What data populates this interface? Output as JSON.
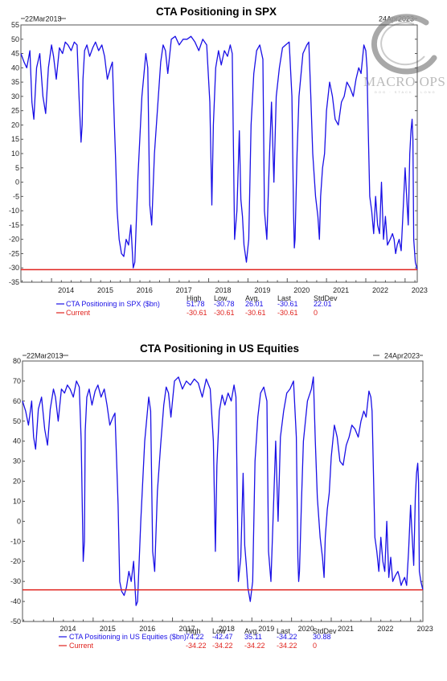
{
  "logo": {
    "text": "MACRO OPS",
    "subtext": "DOG · STACK · LONG"
  },
  "chart_data": [
    {
      "type": "line",
      "title": "CTA Positioning in SPX",
      "start_label": "22Mar2013",
      "end_label": "24Apr2023",
      "xlim": [
        2013.22,
        2023.31
      ],
      "ylim": [
        -35,
        55
      ],
      "y_ticks": [
        -35,
        -30,
        -25,
        -20,
        -15,
        -10,
        -5,
        0,
        5,
        10,
        15,
        20,
        25,
        30,
        35,
        40,
        45,
        50,
        55
      ],
      "x_ticks": [
        {
          "label": "2014",
          "value": 2014.0
        },
        {
          "label": "2015",
          "value": 2015.0
        },
        {
          "label": "2016",
          "value": 2016.0
        },
        {
          "label": "2017",
          "value": 2017.0
        },
        {
          "label": "2018",
          "value": 2018.0
        },
        {
          "label": "2019",
          "value": 2019.0
        },
        {
          "label": "2020",
          "value": 2020.0
        },
        {
          "label": "2021",
          "value": 2021.0
        },
        {
          "label": "2022",
          "value": 2022.0
        },
        {
          "label": "2023",
          "value": 2023.0
        }
      ],
      "stats_headers": [
        "High",
        "Low",
        "Avg.",
        "Last",
        "StdDev"
      ],
      "series": [
        {
          "name": "CTA Positioning in SPX ($bn)",
          "color": "#1a10e6",
          "stats": [
            "51.78",
            "-30.78",
            "26.01",
            "-30.61",
            "22.01"
          ],
          "x": [
            2013.22,
            2013.3,
            2013.37,
            2013.45,
            2013.5,
            2013.55,
            2013.62,
            2013.7,
            2013.78,
            2013.85,
            2013.92,
            2014.0,
            2014.05,
            2014.12,
            2014.2,
            2014.28,
            2014.35,
            2014.42,
            2014.5,
            2014.58,
            2014.65,
            2014.7,
            2014.75,
            2014.78,
            2014.8,
            2014.84,
            2014.9,
            2014.97,
            2015.05,
            2015.12,
            2015.2,
            2015.28,
            2015.35,
            2015.42,
            2015.5,
            2015.55,
            2015.6,
            2015.63,
            2015.67,
            2015.72,
            2015.78,
            2015.84,
            2015.9,
            2015.96,
            2016.02,
            2016.08,
            2016.12,
            2016.2,
            2016.3,
            2016.4,
            2016.45,
            2016.5,
            2016.55,
            2016.62,
            2016.7,
            2016.78,
            2016.84,
            2016.9,
            2016.96,
            2017.05,
            2017.15,
            2017.25,
            2017.35,
            2017.45,
            2017.55,
            2017.65,
            2017.75,
            2017.85,
            2017.95,
            2018.03,
            2018.08,
            2018.12,
            2018.18,
            2018.25,
            2018.32,
            2018.4,
            2018.48,
            2018.55,
            2018.6,
            2018.66,
            2018.72,
            2018.78,
            2018.82,
            2018.86,
            2018.9,
            2018.96,
            2019.02,
            2019.08,
            2019.15,
            2019.22,
            2019.3,
            2019.38,
            2019.42,
            2019.48,
            2019.55,
            2019.6,
            2019.66,
            2019.72,
            2019.8,
            2019.88,
            2019.96,
            2020.05,
            2020.12,
            2020.16,
            2020.18,
            2020.2,
            2020.25,
            2020.3,
            2020.4,
            2020.5,
            2020.55,
            2020.6,
            2020.65,
            2020.72,
            2020.78,
            2020.82,
            2020.85,
            2020.9,
            2020.95,
            2021.0,
            2021.08,
            2021.15,
            2021.22,
            2021.3,
            2021.38,
            2021.45,
            2021.52,
            2021.6,
            2021.68,
            2021.75,
            2021.82,
            2021.88,
            2021.95,
            2022.0,
            2022.03,
            2022.06,
            2022.1,
            2022.15,
            2022.2,
            2022.25,
            2022.3,
            2022.35,
            2022.4,
            2022.45,
            2022.5,
            2022.55,
            2022.62,
            2022.68,
            2022.72,
            2022.76,
            2022.8,
            2022.85,
            2022.9,
            2022.95,
            2023.0,
            2023.04,
            2023.08,
            2023.12,
            2023.15,
            2023.18,
            2023.2,
            2023.22,
            2023.26,
            2023.31
          ],
          "y": [
            45,
            42,
            40,
            46,
            28,
            22,
            40,
            45,
            30,
            24,
            40,
            48,
            44,
            36,
            47,
            45,
            49,
            48,
            46,
            49,
            48,
            30,
            14,
            20,
            36,
            46,
            48,
            44,
            47,
            49,
            46,
            48,
            44,
            36,
            40,
            42,
            20,
            8,
            -10,
            -20,
            -25,
            -26,
            -20,
            -22,
            -15,
            -30,
            -28,
            2,
            30,
            45,
            40,
            -8,
            -15,
            10,
            26,
            42,
            48,
            46,
            38,
            50,
            51,
            48,
            50,
            50,
            51,
            49,
            46,
            50,
            48,
            28,
            -8,
            20,
            40,
            46,
            41,
            46,
            44,
            48,
            45,
            -20,
            -10,
            18,
            -6,
            -12,
            -22,
            -28,
            -20,
            20,
            38,
            46,
            48,
            43,
            -10,
            -20,
            10,
            28,
            0,
            30,
            40,
            47,
            48,
            49,
            30,
            -10,
            -23,
            -20,
            10,
            30,
            45,
            48,
            49,
            30,
            10,
            -5,
            -12,
            -20,
            -5,
            5,
            10,
            25,
            35,
            30,
            22,
            20,
            28,
            30,
            35,
            33,
            30,
            36,
            40,
            38,
            48,
            46,
            40,
            20,
            -5,
            -10,
            -18,
            -5,
            -15,
            -18,
            0,
            -20,
            -12,
            -22,
            -20,
            -18,
            -20,
            -25,
            -22,
            -20,
            -24,
            -10,
            5,
            -5,
            -15,
            10,
            18,
            22,
            15,
            -20,
            -28,
            -30.61
          ]
        },
        {
          "name": "Current",
          "color": "#e0231e",
          "stats": [
            "-30.61",
            "-30.61",
            "-30.61",
            "-30.61",
            "0"
          ],
          "value": -30.61
        }
      ]
    },
    {
      "type": "line",
      "title": "CTA Positioning in US Equities",
      "start_label": "22Mar2013",
      "end_label": "24Apr2023",
      "xlim": [
        2013.22,
        2023.31
      ],
      "ylim": [
        -50,
        80
      ],
      "y_ticks": [
        -50,
        -40,
        -30,
        -20,
        -10,
        0,
        10,
        20,
        30,
        40,
        50,
        60,
        70,
        80
      ],
      "x_ticks": [
        {
          "label": "2014",
          "value": 2014.0
        },
        {
          "label": "2015",
          "value": 2015.0
        },
        {
          "label": "2016",
          "value": 2016.0
        },
        {
          "label": "2017",
          "value": 2017.0
        },
        {
          "label": "2018",
          "value": 2018.0
        },
        {
          "label": "2019",
          "value": 2019.0
        },
        {
          "label": "2020",
          "value": 2020.0
        },
        {
          "label": "2021",
          "value": 2021.0
        },
        {
          "label": "2022",
          "value": 2022.0
        },
        {
          "label": "2023",
          "value": 2023.0
        }
      ],
      "stats_headers": [
        "High",
        "Low",
        "Avg.",
        "Last",
        "StdDev"
      ],
      "series": [
        {
          "name": "CTA Positioning in US Equities ($bn)",
          "color": "#1a10e6",
          "stats": [
            "74.22",
            "-42.47",
            "35.11",
            "-34.22",
            "30.88"
          ],
          "x": [
            2013.22,
            2013.3,
            2013.37,
            2013.45,
            2013.5,
            2013.55,
            2013.62,
            2013.7,
            2013.78,
            2013.85,
            2013.92,
            2014.0,
            2014.05,
            2014.12,
            2014.2,
            2014.28,
            2014.35,
            2014.42,
            2014.5,
            2014.58,
            2014.65,
            2014.7,
            2014.75,
            2014.78,
            2014.8,
            2014.84,
            2014.9,
            2014.97,
            2015.05,
            2015.12,
            2015.2,
            2015.28,
            2015.35,
            2015.42,
            2015.5,
            2015.55,
            2015.6,
            2015.63,
            2015.67,
            2015.72,
            2015.78,
            2015.84,
            2015.9,
            2015.96,
            2016.02,
            2016.08,
            2016.12,
            2016.2,
            2016.3,
            2016.4,
            2016.45,
            2016.5,
            2016.55,
            2016.62,
            2016.7,
            2016.78,
            2016.84,
            2016.9,
            2016.96,
            2017.05,
            2017.15,
            2017.25,
            2017.35,
            2017.45,
            2017.55,
            2017.65,
            2017.75,
            2017.85,
            2017.95,
            2018.03,
            2018.08,
            2018.12,
            2018.18,
            2018.25,
            2018.32,
            2018.4,
            2018.48,
            2018.55,
            2018.6,
            2018.66,
            2018.72,
            2018.78,
            2018.82,
            2018.86,
            2018.9,
            2018.96,
            2019.02,
            2019.08,
            2019.15,
            2019.22,
            2019.3,
            2019.38,
            2019.42,
            2019.48,
            2019.55,
            2019.6,
            2019.66,
            2019.72,
            2019.8,
            2019.88,
            2019.96,
            2020.05,
            2020.12,
            2020.16,
            2020.18,
            2020.2,
            2020.25,
            2020.3,
            2020.4,
            2020.5,
            2020.55,
            2020.6,
            2020.65,
            2020.72,
            2020.78,
            2020.82,
            2020.85,
            2020.9,
            2020.95,
            2021.0,
            2021.08,
            2021.15,
            2021.22,
            2021.3,
            2021.38,
            2021.45,
            2021.52,
            2021.6,
            2021.68,
            2021.75,
            2021.82,
            2021.88,
            2021.95,
            2022.0,
            2022.03,
            2022.06,
            2022.1,
            2022.15,
            2022.2,
            2022.25,
            2022.3,
            2022.35,
            2022.4,
            2022.45,
            2022.5,
            2022.55,
            2022.62,
            2022.68,
            2022.72,
            2022.76,
            2022.8,
            2022.85,
            2022.9,
            2022.95,
            2023.0,
            2023.04,
            2023.08,
            2023.12,
            2023.15,
            2023.18,
            2023.2,
            2023.22,
            2023.26,
            2023.31
          ],
          "y": [
            60,
            55,
            48,
            60,
            42,
            36,
            56,
            62,
            46,
            38,
            56,
            66,
            62,
            50,
            66,
            64,
            68,
            66,
            62,
            70,
            67,
            40,
            -20,
            -10,
            45,
            62,
            66,
            58,
            65,
            68,
            62,
            66,
            58,
            48,
            52,
            54,
            25,
            8,
            -30,
            -35,
            -37,
            -33,
            -25,
            -30,
            -20,
            -42,
            -40,
            0,
            40,
            62,
            55,
            -15,
            -25,
            15,
            38,
            58,
            67,
            64,
            52,
            70,
            72,
            66,
            70,
            68,
            71,
            69,
            62,
            71,
            66,
            40,
            -15,
            28,
            55,
            63,
            58,
            64,
            60,
            68,
            62,
            -30,
            -18,
            24,
            -12,
            -22,
            -33,
            -40,
            -30,
            30,
            52,
            64,
            67,
            60,
            -15,
            -30,
            10,
            40,
            0,
            42,
            55,
            64,
            66,
            70,
            42,
            -18,
            -30,
            -25,
            10,
            40,
            60,
            66,
            72,
            40,
            12,
            -8,
            -18,
            -28,
            -8,
            6,
            14,
            32,
            48,
            42,
            30,
            28,
            38,
            42,
            48,
            46,
            42,
            50,
            55,
            52,
            65,
            62,
            55,
            28,
            -8,
            -15,
            -25,
            -8,
            -20,
            -25,
            0,
            -28,
            -18,
            -30,
            -27,
            -25,
            -28,
            -32,
            -30,
            -28,
            -32,
            -15,
            8,
            -8,
            -22,
            12,
            24,
            29,
            20,
            -25,
            -30,
            -34.22
          ]
        },
        {
          "name": "Current",
          "color": "#e0231e",
          "stats": [
            "-34.22",
            "-34.22",
            "-34.22",
            "-34.22",
            "0"
          ],
          "value": -34.22
        }
      ]
    }
  ]
}
